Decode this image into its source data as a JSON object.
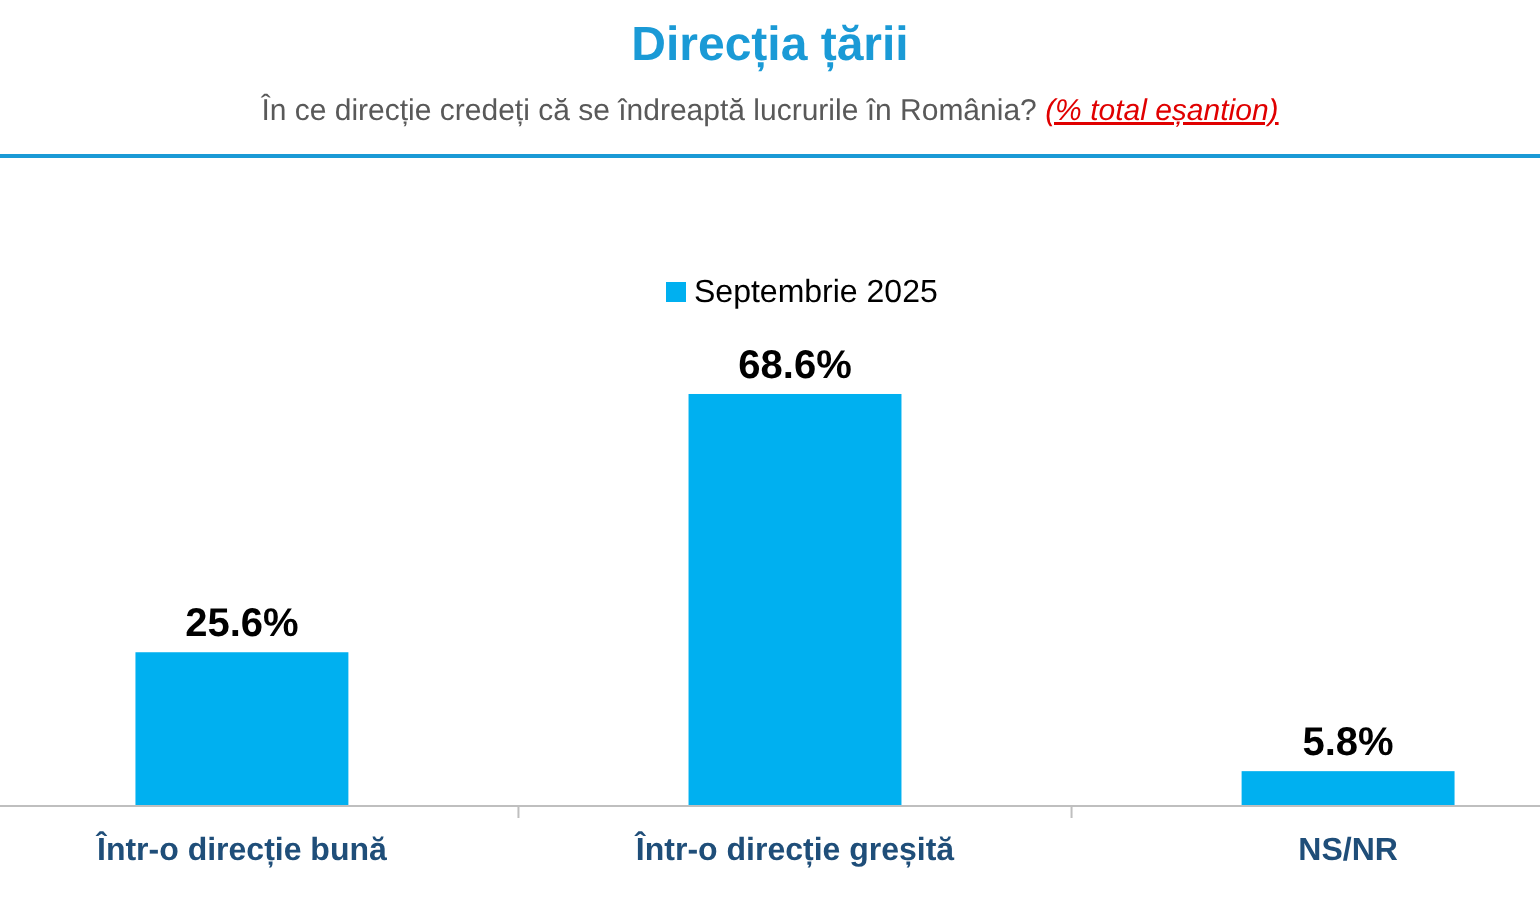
{
  "chart_data": {
    "type": "bar",
    "title": "Direcția țării",
    "subtitle": "În ce direcție credeți că se îndreaptă lucrurile în România? (% total eșantion)",
    "categories": [
      "Într-o direcție bună",
      "Într-o direcție greșită",
      "NS/NR"
    ],
    "series": [
      {
        "name": "Septembrie 2025",
        "color": "#00b0f0",
        "values": [
          25.6,
          68.6,
          5.8
        ],
        "value_labels": [
          "25.6%",
          "68.6%",
          "5.8%"
        ]
      }
    ],
    "legend": "top",
    "grid": false
  }
}
